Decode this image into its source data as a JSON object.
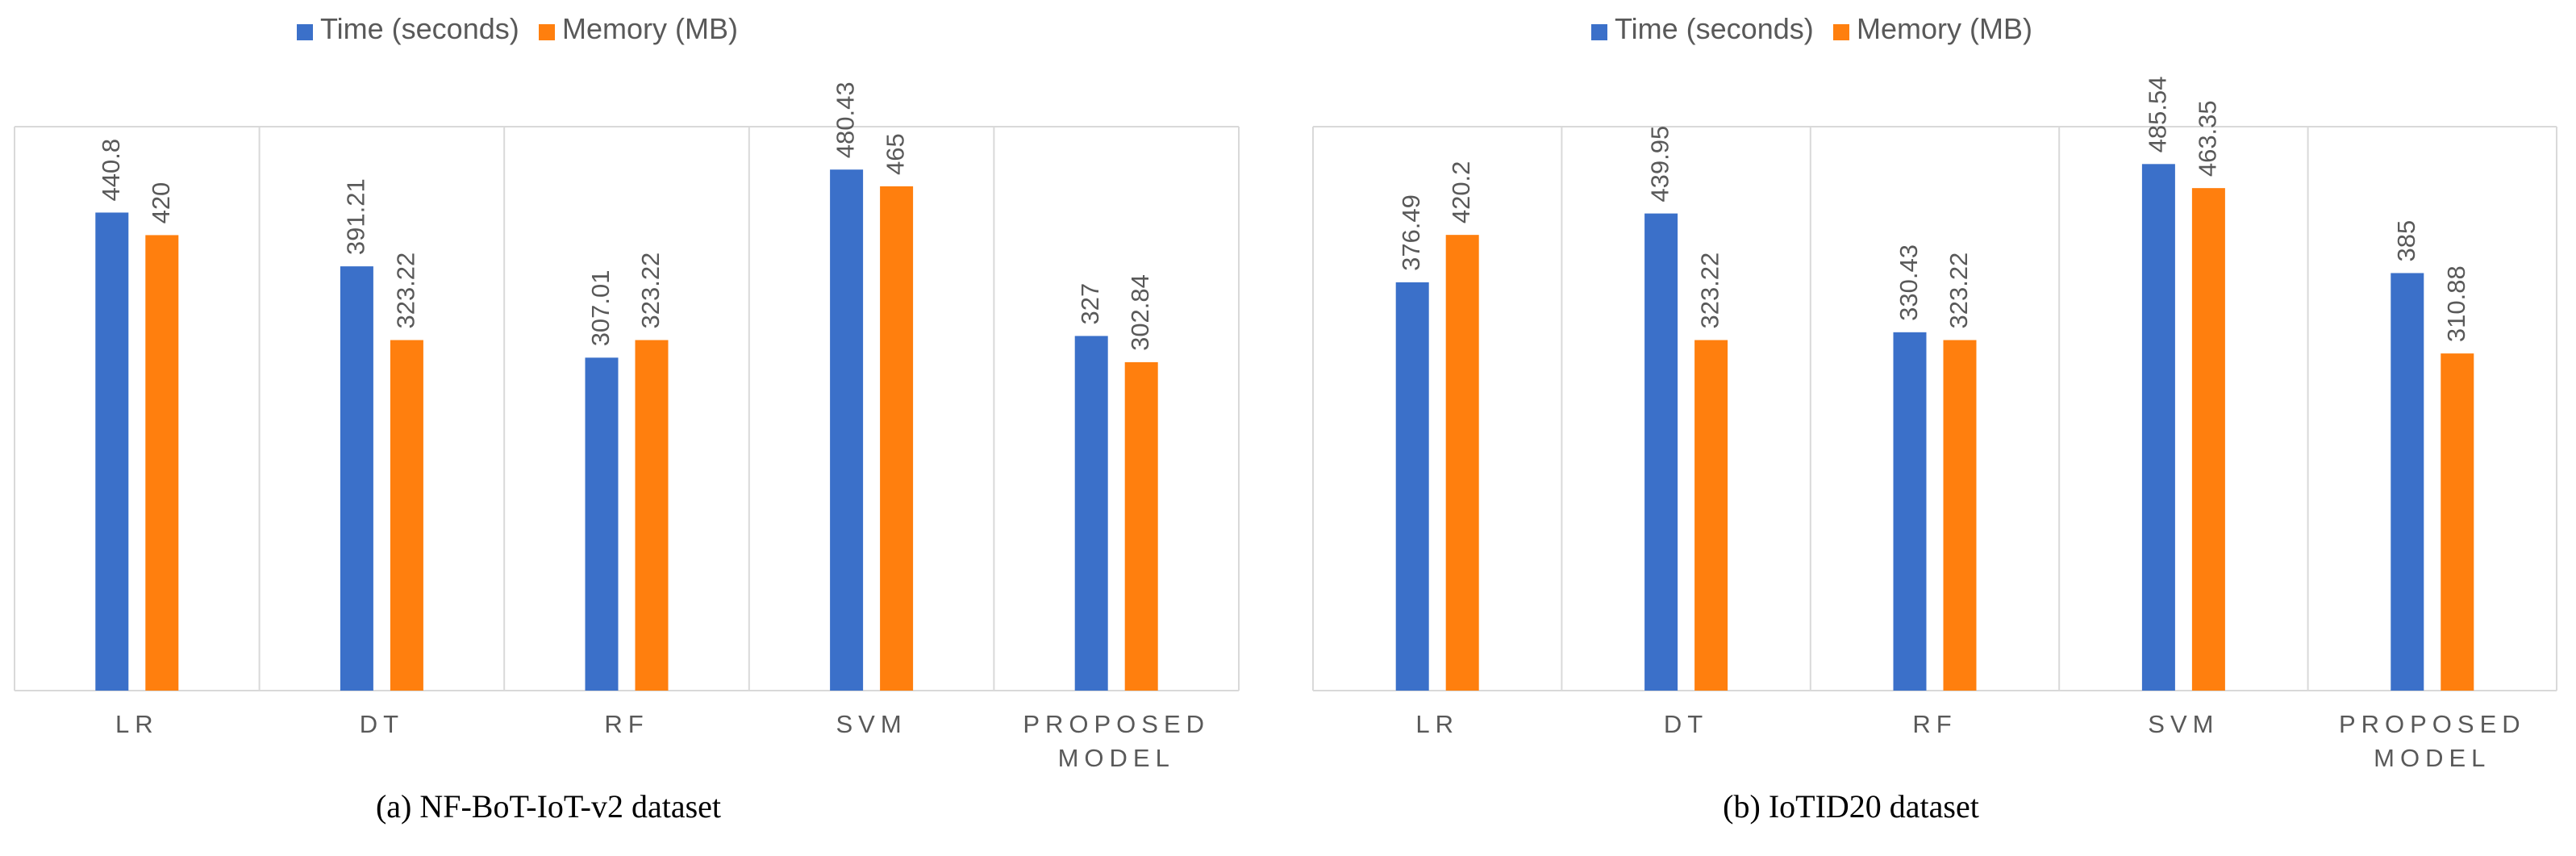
{
  "colors": {
    "time": "#3b70c9",
    "memory": "#ff7f0e",
    "grid": "#d9d9d9",
    "label": "#595959",
    "caption": "#000000"
  },
  "chart_data": [
    {
      "type": "bar",
      "caption": "(a) NF-BoT-IoT-v2 dataset",
      "categories": [
        "LR",
        "DT",
        "RF",
        "SVM",
        "PROPOSED MODEL"
      ],
      "category_lines": [
        [
          "LR"
        ],
        [
          "DT"
        ],
        [
          "RF"
        ],
        [
          "SVM"
        ],
        [
          "PROPOSED",
          "MODEL"
        ]
      ],
      "series": [
        {
          "name": "Time (seconds)",
          "values": [
            440.8,
            391.21,
            307.01,
            480.43,
            327
          ],
          "labels": [
            "440.8",
            "391.21",
            "307.01",
            "480.43",
            "327"
          ]
        },
        {
          "name": "Memory (MB)",
          "values": [
            420,
            323.22,
            323.22,
            465,
            302.84
          ],
          "labels": [
            "420",
            "323.22",
            "323.22",
            "465",
            "302.84"
          ]
        }
      ],
      "ylim": [
        0,
        520
      ],
      "legend": "top-center",
      "grid": true
    },
    {
      "type": "bar",
      "caption": "(b) IoTID20  dataset",
      "categories": [
        "LR",
        "DT",
        "RF",
        "SVM",
        "PROPOSED MODEL"
      ],
      "category_lines": [
        [
          "LR"
        ],
        [
          "DT"
        ],
        [
          "RF"
        ],
        [
          "SVM"
        ],
        [
          "PROPOSED",
          "MODEL"
        ]
      ],
      "series": [
        {
          "name": "Time (seconds)",
          "values": [
            376.49,
            439.95,
            330.43,
            485.54,
            385
          ],
          "labels": [
            "376.49",
            "439.95",
            "330.43",
            "485.54",
            "385"
          ]
        },
        {
          "name": "Memory (MB)",
          "values": [
            420.2,
            323.22,
            323.22,
            463.35,
            310.88
          ],
          "labels": [
            "420.2",
            "323.22",
            "323.22",
            "463.35",
            "310.88"
          ]
        }
      ],
      "ylim": [
        0,
        520
      ],
      "legend": "top-center",
      "grid": true
    }
  ]
}
